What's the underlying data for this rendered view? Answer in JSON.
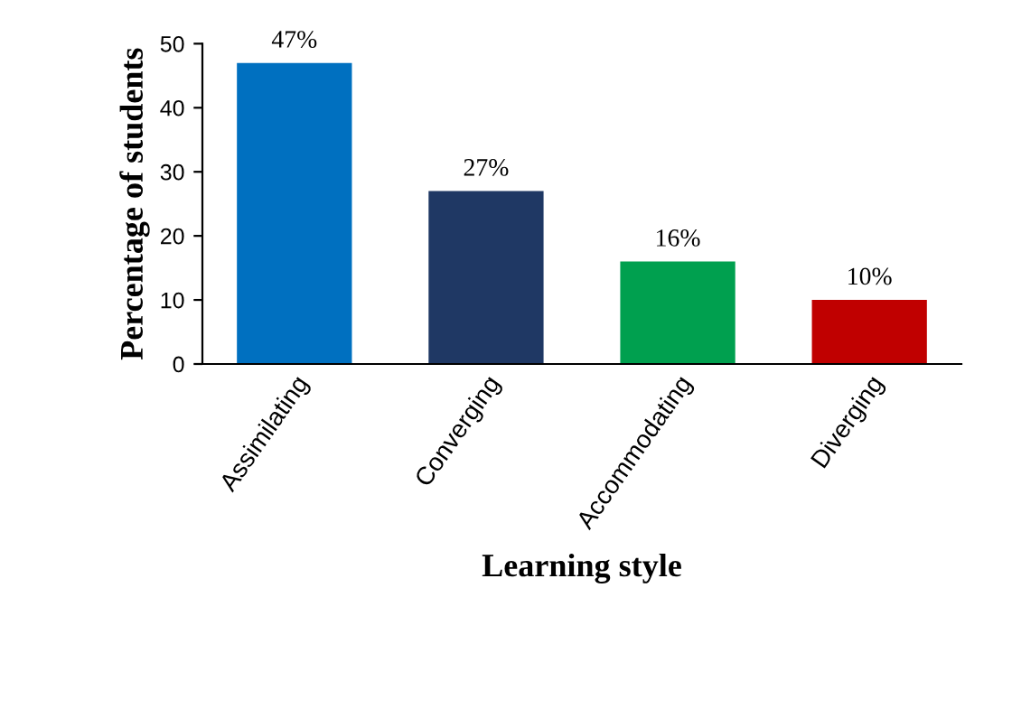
{
  "chart_data": {
    "type": "bar",
    "xlabel": "Learning style",
    "ylabel": "Percentage of students",
    "categories": [
      "Assimilating",
      "Converging",
      "Accommodating",
      "Diverging"
    ],
    "values": [
      47,
      27,
      16,
      10
    ],
    "colors": [
      "#0070c0",
      "#1f3864",
      "#00a04f",
      "#c00000"
    ],
    "value_labels": [
      "47%",
      "27%",
      "16%",
      "10%"
    ],
    "ylim": [
      0,
      50
    ],
    "yticks": [
      0,
      10,
      20,
      30,
      40,
      50
    ],
    "grid": false,
    "legend": false
  }
}
